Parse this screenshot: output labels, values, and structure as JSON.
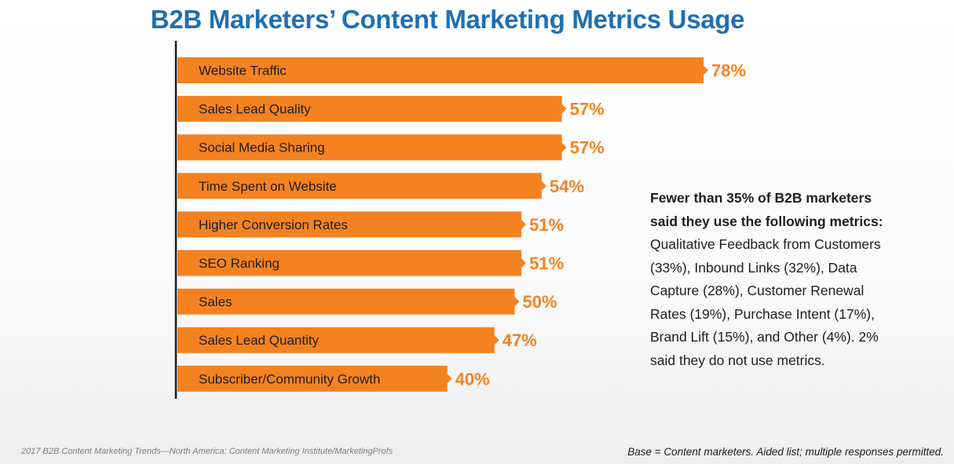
{
  "chart_data": {
    "type": "bar",
    "orientation": "horizontal",
    "title": "B2B Marketers’ Content Marketing Metrics Usage",
    "categories": [
      "Website Traffic",
      "Sales Lead Quality",
      "Social Media Sharing",
      "Time Spent on Website",
      "Higher Conversion Rates",
      "SEO Ranking",
      "Sales",
      "Sales Lead Quantity",
      "Subscriber/Community Growth"
    ],
    "values": [
      78,
      57,
      57,
      54,
      51,
      51,
      50,
      47,
      40
    ],
    "value_labels": [
      "78%",
      "57%",
      "57%",
      "54%",
      "51%",
      "51%",
      "50%",
      "47%",
      "40%"
    ],
    "unit": "%",
    "bar_color": "#f58220",
    "label_color": "#f58220",
    "axis_color": "#1a1a1a",
    "grid": false
  },
  "title_color": "#1f6fb3",
  "note": {
    "bold": "Fewer than 35% of B2B marketers said they use the following metrics:",
    "text": " Qualitative Feedback from Customers (33%), Inbound Links (32%), Data Capture (28%), Customer Renewal Rates (19%), Purchase Intent (17%), Brand Lift (15%), and Other (4%). 2% said they do not use metrics."
  },
  "source": "2017 B2B Content Marketing Trends—North America: Content Marketing Institute/MarketingProfs",
  "base_note": "Base = Content marketers. Aided list; multiple responses permitted."
}
